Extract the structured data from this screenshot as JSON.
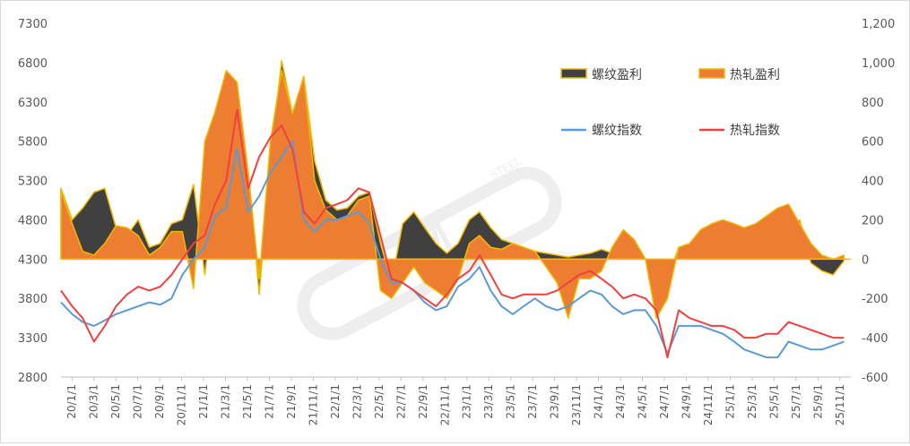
{
  "chart_data": {
    "type": "line",
    "title": "",
    "xlabel": "",
    "y_left": {
      "range": [
        2800,
        7300
      ],
      "ticks": [
        "7300",
        "6800",
        "6300",
        "5800",
        "5300",
        "4800",
        "4300",
        "3800",
        "3300",
        "2800"
      ]
    },
    "y_right": {
      "range": [
        -600,
        1200
      ],
      "ticks": [
        "1,200",
        "1,000",
        "800",
        "600",
        "400",
        "200",
        "0",
        "-200",
        "-400",
        "-600"
      ]
    },
    "x_tick_labels": [
      "20/1/1",
      "20/3/1",
      "20/5/1",
      "20/7/1",
      "20/9/1",
      "20/11/1",
      "21/1/1",
      "21/3/1",
      "21/5/1",
      "21/7/1",
      "21/9/1",
      "21/11/1",
      "22/1/1",
      "22/3/1",
      "22/5/1",
      "22/7/1",
      "22/9/1",
      "22/11/1",
      "23/1/1",
      "23/3/1",
      "23/5/1",
      "23/7/1",
      "23/9/1",
      "23/11/1",
      "24/1/1",
      "24/3/1",
      "24/5/1",
      "24/7/1",
      "24/9/1",
      "24/11/1",
      "25/1/1",
      "25/3/1",
      "25/5/1",
      "25/7/1",
      "25/9/1",
      "25/11/1"
    ],
    "legend": [
      {
        "label": "螺纹盈利",
        "kind": "area",
        "color": "#404040",
        "edge": "#f2b800"
      },
      {
        "label": "热轧盈利",
        "kind": "area",
        "color": "#ed7d31",
        "edge": "#f2b800"
      },
      {
        "label": "螺纹指数",
        "kind": "line",
        "color": "#5b9bd5"
      },
      {
        "label": "热轧指数",
        "kind": "line",
        "color": "#f04040"
      }
    ],
    "legend_position": "top-right",
    "grid": false,
    "series": [
      {
        "name": "螺纹盈利",
        "axis": "right",
        "x": [
          "2020-01-01",
          "2020-02-01",
          "2020-03-01",
          "2020-04-01",
          "2020-05-01",
          "2020-06-01",
          "2020-07-01",
          "2020-08-01",
          "2020-09-01",
          "2020-10-01",
          "2020-11-01",
          "2020-12-01",
          "2021-01-01",
          "2021-02-01",
          "2021-03-01",
          "2021-04-01",
          "2021-05-01",
          "2021-06-01",
          "2021-07-01",
          "2021-08-01",
          "2021-09-01",
          "2021-10-01",
          "2021-11-01",
          "2021-12-01",
          "2022-01-01",
          "2022-02-01",
          "2022-03-01",
          "2022-04-01",
          "2022-05-01",
          "2022-06-01",
          "2022-07-01",
          "2022-08-01",
          "2022-09-01",
          "2022-10-01",
          "2022-11-01",
          "2022-12-01",
          "2023-01-01",
          "2023-02-01",
          "2023-03-01",
          "2023-04-01",
          "2023-05-01",
          "2023-06-01",
          "2023-07-01",
          "2023-08-01",
          "2023-09-01",
          "2023-10-01",
          "2023-11-01",
          "2023-12-01",
          "2024-01-01",
          "2024-02-01",
          "2024-03-01",
          "2024-04-01",
          "2024-05-01",
          "2024-06-01",
          "2024-07-01",
          "2024-08-01",
          "2024-09-01",
          "2024-10-01",
          "2024-11-01",
          "2024-12-01",
          "2025-01-01",
          "2025-02-01",
          "2025-03-01",
          "2025-04-01",
          "2025-05-01",
          "2025-06-01",
          "2025-07-01",
          "2025-08-01",
          "2025-09-01",
          "2025-10-01",
          "2025-11-01",
          "2025-12-01"
        ],
        "values": [
          360,
          200,
          260,
          340,
          360,
          160,
          120,
          200,
          60,
          80,
          180,
          200,
          380,
          -80,
          350,
          900,
          740,
          450,
          -180,
          500,
          1010,
          740,
          930,
          500,
          300,
          250,
          260,
          320,
          340,
          80,
          -120,
          180,
          240,
          160,
          80,
          30,
          80,
          200,
          240,
          160,
          100,
          80,
          60,
          40,
          30,
          20,
          10,
          20,
          30,
          50,
          30,
          60,
          40,
          0,
          -200,
          -100,
          60,
          80,
          150,
          120,
          100,
          80,
          60,
          40,
          60,
          100,
          150,
          200,
          -20,
          -60,
          -80,
          -10
        ]
      },
      {
        "name": "热轧盈利",
        "axis": "right",
        "x": [
          "2020-01-01",
          "2020-02-01",
          "2020-03-01",
          "2020-04-01",
          "2020-05-01",
          "2020-06-01",
          "2020-07-01",
          "2020-08-01",
          "2020-09-01",
          "2020-10-01",
          "2020-11-01",
          "2020-12-01",
          "2021-01-01",
          "2021-02-01",
          "2021-03-01",
          "2021-04-01",
          "2021-05-01",
          "2021-06-01",
          "2021-07-01",
          "2021-08-01",
          "2021-09-01",
          "2021-10-01",
          "2021-11-01",
          "2021-12-01",
          "2022-01-01",
          "2022-02-01",
          "2022-03-01",
          "2022-04-01",
          "2022-05-01",
          "2022-06-01",
          "2022-07-01",
          "2022-08-01",
          "2022-09-01",
          "2022-10-01",
          "2022-11-01",
          "2022-12-01",
          "2023-01-01",
          "2023-02-01",
          "2023-03-01",
          "2023-04-01",
          "2023-05-01",
          "2023-06-01",
          "2023-07-01",
          "2023-08-01",
          "2023-09-01",
          "2023-10-01",
          "2023-11-01",
          "2023-12-01",
          "2024-01-01",
          "2024-02-01",
          "2024-03-01",
          "2024-04-01",
          "2024-05-01",
          "2024-06-01",
          "2024-07-01",
          "2024-08-01",
          "2024-09-01",
          "2024-10-01",
          "2024-11-01",
          "2024-12-01",
          "2025-01-01",
          "2025-02-01",
          "2025-03-01",
          "2025-04-01",
          "2025-05-01",
          "2025-06-01",
          "2025-07-01",
          "2025-08-01",
          "2025-09-01",
          "2025-10-01",
          "2025-11-01",
          "2025-12-01"
        ],
        "values": [
          350,
          180,
          40,
          20,
          80,
          170,
          160,
          120,
          20,
          60,
          140,
          140,
          -150,
          600,
          750,
          960,
          900,
          440,
          -100,
          600,
          960,
          740,
          930,
          400,
          250,
          200,
          220,
          300,
          320,
          -160,
          -200,
          -120,
          -40,
          -120,
          -160,
          -200,
          -100,
          80,
          120,
          60,
          50,
          80,
          60,
          40,
          -40,
          -120,
          -300,
          -100,
          -100,
          -60,
          60,
          150,
          100,
          0,
          -300,
          -200,
          60,
          80,
          150,
          180,
          200,
          180,
          160,
          180,
          220,
          260,
          280,
          180,
          80,
          20,
          0,
          20
        ]
      },
      {
        "name": "螺纹指数",
        "axis": "left",
        "x": [
          "2020-01-01",
          "2020-02-01",
          "2020-03-01",
          "2020-04-01",
          "2020-05-01",
          "2020-06-01",
          "2020-07-01",
          "2020-08-01",
          "2020-09-01",
          "2020-10-01",
          "2020-11-01",
          "2020-12-01",
          "2021-01-01",
          "2021-02-01",
          "2021-03-01",
          "2021-04-01",
          "2021-05-01",
          "2021-06-01",
          "2021-07-01",
          "2021-08-01",
          "2021-09-01",
          "2021-10-01",
          "2021-11-01",
          "2021-12-01",
          "2022-01-01",
          "2022-02-01",
          "2022-03-01",
          "2022-04-01",
          "2022-05-01",
          "2022-06-01",
          "2022-07-01",
          "2022-08-01",
          "2022-09-01",
          "2022-10-01",
          "2022-11-01",
          "2022-12-01",
          "2023-01-01",
          "2023-02-01",
          "2023-03-01",
          "2023-04-01",
          "2023-05-01",
          "2023-06-01",
          "2023-07-01",
          "2023-08-01",
          "2023-09-01",
          "2023-10-01",
          "2023-11-01",
          "2023-12-01",
          "2024-01-01",
          "2024-02-01",
          "2024-03-01",
          "2024-04-01",
          "2024-05-01",
          "2024-06-01",
          "2024-07-01",
          "2024-08-01",
          "2024-09-01",
          "2024-10-01",
          "2024-11-01",
          "2024-12-01",
          "2025-01-01",
          "2025-02-01",
          "2025-03-01",
          "2025-04-01",
          "2025-05-01",
          "2025-06-01",
          "2025-07-01",
          "2025-08-01",
          "2025-09-01",
          "2025-10-01",
          "2025-11-01",
          "2025-12-01"
        ],
        "values": [
          3750,
          3600,
          3500,
          3450,
          3520,
          3600,
          3650,
          3700,
          3750,
          3720,
          3800,
          4100,
          4300,
          4450,
          4850,
          4950,
          5700,
          4900,
          5100,
          5400,
          5600,
          5800,
          4800,
          4650,
          4800,
          4800,
          4850,
          4900,
          4750,
          4300,
          4000,
          4000,
          3900,
          3750,
          3650,
          3700,
          3950,
          4050,
          4200,
          3900,
          3700,
          3600,
          3700,
          3800,
          3700,
          3650,
          3700,
          3800,
          3900,
          3850,
          3700,
          3600,
          3650,
          3650,
          3450,
          3100,
          3450,
          3450,
          3450,
          3400,
          3350,
          3250,
          3150,
          3100,
          3050,
          3050,
          3250,
          3200,
          3150,
          3150,
          3200,
          3250
        ]
      },
      {
        "name": "热轧指数",
        "axis": "left",
        "x": [
          "2020-01-01",
          "2020-02-01",
          "2020-03-01",
          "2020-04-01",
          "2020-05-01",
          "2020-06-01",
          "2020-07-01",
          "2020-08-01",
          "2020-09-01",
          "2020-10-01",
          "2020-11-01",
          "2020-12-01",
          "2021-01-01",
          "2021-02-01",
          "2021-03-01",
          "2021-04-01",
          "2021-05-01",
          "2021-06-01",
          "2021-07-01",
          "2021-08-01",
          "2021-09-01",
          "2021-10-01",
          "2021-11-01",
          "2021-12-01",
          "2022-01-01",
          "2022-02-01",
          "2022-03-01",
          "2022-04-01",
          "2022-05-01",
          "2022-06-01",
          "2022-07-01",
          "2022-08-01",
          "2022-09-01",
          "2022-10-01",
          "2022-11-01",
          "2022-12-01",
          "2023-01-01",
          "2023-02-01",
          "2023-03-01",
          "2023-04-01",
          "2023-05-01",
          "2023-06-01",
          "2023-07-01",
          "2023-08-01",
          "2023-09-01",
          "2023-10-01",
          "2023-11-01",
          "2023-12-01",
          "2024-01-01",
          "2024-02-01",
          "2024-03-01",
          "2024-04-01",
          "2024-05-01",
          "2024-06-01",
          "2024-07-01",
          "2024-08-01",
          "2024-09-01",
          "2024-10-01",
          "2024-11-01",
          "2024-12-01",
          "2025-01-01",
          "2025-02-01",
          "2025-03-01",
          "2025-04-01",
          "2025-05-01",
          "2025-06-01",
          "2025-07-01",
          "2025-08-01",
          "2025-09-01",
          "2025-10-01",
          "2025-11-01",
          "2025-12-01"
        ],
        "values": [
          3900,
          3700,
          3550,
          3250,
          3450,
          3700,
          3850,
          3950,
          3900,
          3950,
          4100,
          4300,
          4500,
          4600,
          5000,
          5300,
          6200,
          5200,
          5600,
          5850,
          6000,
          5700,
          4900,
          4750,
          4950,
          5000,
          5050,
          5200,
          5150,
          4600,
          4050,
          4000,
          3900,
          3800,
          3700,
          3850,
          4050,
          4150,
          4350,
          4100,
          3850,
          3800,
          3850,
          3850,
          3850,
          3900,
          4000,
          4100,
          4150,
          4050,
          3950,
          3800,
          3850,
          3800,
          3650,
          3050,
          3650,
          3550,
          3500,
          3450,
          3450,
          3400,
          3300,
          3300,
          3350,
          3350,
          3500,
          3450,
          3400,
          3350,
          3300,
          3300
        ]
      }
    ]
  },
  "watermark": {
    "symbol": "钢",
    "text": "STEEL"
  }
}
